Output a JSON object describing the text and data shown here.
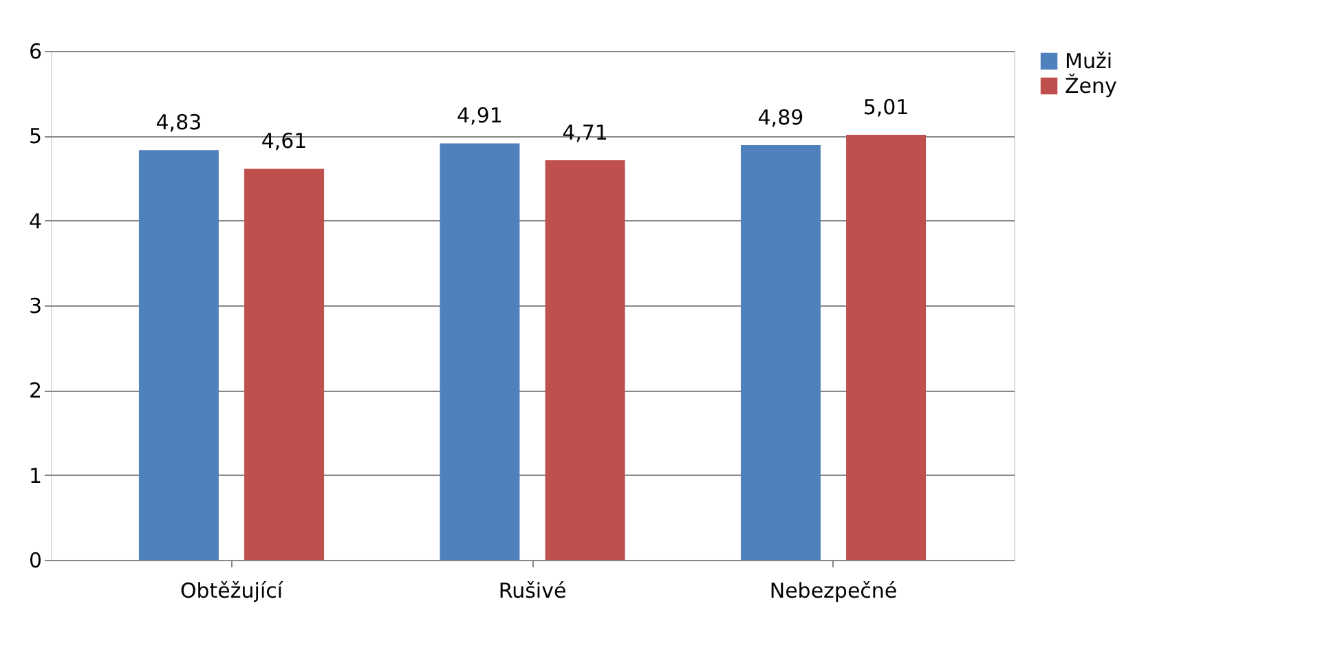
{
  "chart_data": {
    "type": "bar",
    "categories": [
      "Obtěžující",
      "Rušivé",
      "Nebezpečné"
    ],
    "series": [
      {
        "name": "Muži",
        "color": "#4f81bd",
        "values": [
          4.83,
          4.91,
          4.89
        ],
        "value_labels": [
          "4,83",
          "4,91",
          "4,89"
        ]
      },
      {
        "name": "Ženy",
        "color": "#c0504d",
        "values": [
          4.61,
          4.71,
          5.01
        ],
        "value_labels": [
          "4,61",
          "4,71",
          "5,01"
        ]
      }
    ],
    "ylim": [
      0,
      6
    ],
    "yticks": [
      0,
      1,
      2,
      3,
      4,
      5,
      6
    ],
    "grid": "y",
    "legend": "right"
  }
}
